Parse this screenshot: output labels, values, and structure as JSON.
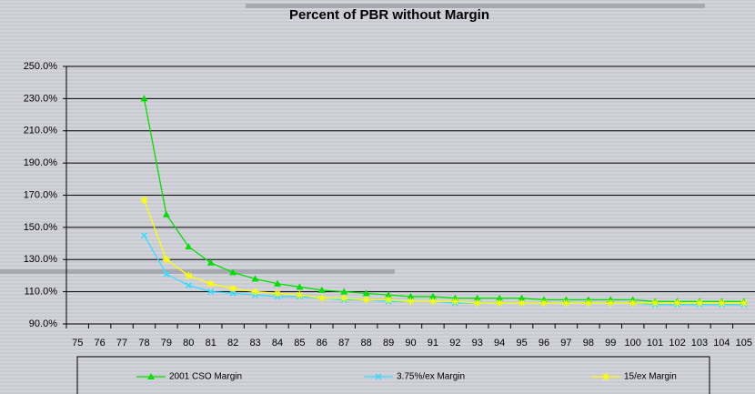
{
  "chart_data": {
    "type": "line",
    "title": "Percent of PBR without Margin",
    "categories": [
      "75",
      "76",
      "77",
      "78",
      "79",
      "80",
      "81",
      "82",
      "83",
      "84",
      "85",
      "86",
      "87",
      "88",
      "89",
      "90",
      "91",
      "92",
      "93",
      "94",
      "95",
      "96",
      "97",
      "98",
      "99",
      "100",
      "101",
      "102",
      "103",
      "104",
      "105"
    ],
    "series": [
      {
        "name": "2001 CSO Margin",
        "color": "#00e000",
        "marker": "triangle",
        "values": [
          null,
          null,
          null,
          230,
          158,
          138,
          128,
          122,
          118,
          115,
          113,
          111,
          110,
          109,
          108,
          107,
          107,
          106,
          106,
          106,
          106,
          105,
          105,
          105,
          105,
          105,
          104,
          104,
          104,
          104,
          104
        ]
      },
      {
        "name": "3.75%/ex Margin",
        "color": "#33ddff",
        "marker": "x",
        "values": [
          null,
          null,
          null,
          145,
          121,
          114,
          110,
          109,
          108,
          107,
          107,
          106,
          105,
          105,
          104,
          104,
          104,
          103,
          103,
          103,
          103,
          103,
          103,
          103,
          103,
          103,
          102,
          102,
          102,
          102,
          102
        ]
      },
      {
        "name": "15/ex Margin",
        "color": "#ffff00",
        "marker": "star",
        "values": [
          null,
          null,
          null,
          167,
          130,
          120,
          115,
          112,
          110,
          109,
          108,
          106,
          106,
          105,
          105,
          104,
          104,
          104,
          103,
          103,
          103,
          103,
          103,
          103,
          103,
          103,
          103,
          103,
          103,
          103,
          103
        ]
      }
    ],
    "ylim": [
      90,
      250
    ],
    "yticks": [
      {
        "value": 90,
        "label": "90.0%"
      },
      {
        "value": 110,
        "label": "110.0%"
      },
      {
        "value": 130,
        "label": "130.0%"
      },
      {
        "value": 150,
        "label": "150.0%"
      },
      {
        "value": 170,
        "label": "170.0%"
      },
      {
        "value": 190,
        "label": "190.0%"
      },
      {
        "value": 210,
        "label": "210.0%"
      },
      {
        "value": 230,
        "label": "230.0%"
      },
      {
        "value": 250,
        "label": "250.0%"
      }
    ],
    "grid": true
  }
}
